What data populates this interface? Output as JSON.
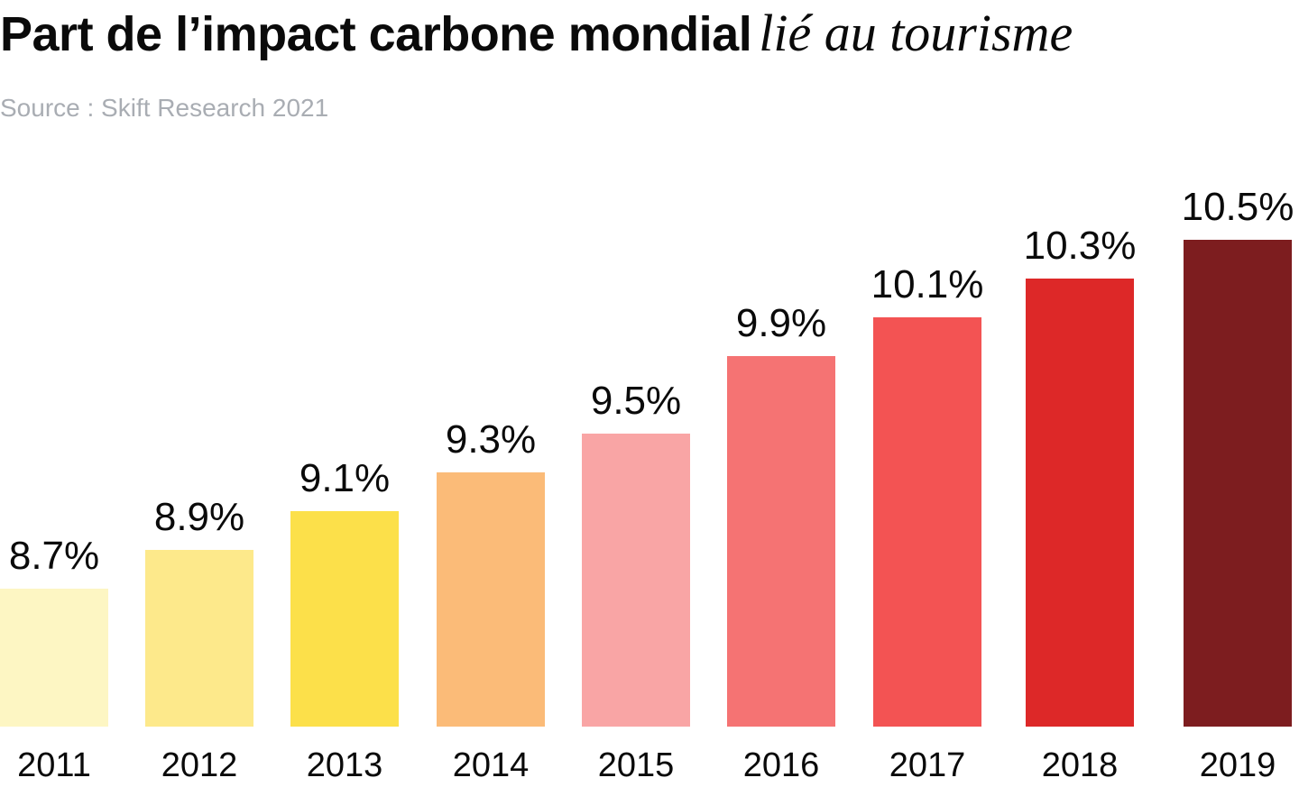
{
  "header": {
    "title_main": "Part de l’impact carbone mondial",
    "title_accent": "lié au tourisme",
    "source": "Source : Skift Research 2021"
  },
  "chart_data": {
    "type": "bar",
    "title": "Part de l’impact carbone mondial lié au tourisme",
    "subtitle": "Source : Skift Research 2021",
    "xlabel": "",
    "ylabel": "",
    "categories": [
      "2011",
      "2012",
      "2013",
      "2014",
      "2015",
      "2016",
      "2017",
      "2018",
      "2019"
    ],
    "values": [
      8.7,
      8.9,
      9.1,
      9.3,
      9.5,
      9.9,
      10.1,
      10.3,
      10.5
    ],
    "value_labels": [
      "8.7%",
      "8.9%",
      "9.1%",
      "9.3%",
      "9.5%",
      "9.9%",
      "10.1%",
      "10.3%",
      "10.5%"
    ],
    "colors": [
      "#fdf6c3",
      "#fde98b",
      "#fce04a",
      "#fbbb78",
      "#f9a5a5",
      "#f57373",
      "#f35353",
      "#dd2828",
      "#7d1d1f"
    ],
    "grid": false,
    "legend": "none"
  }
}
